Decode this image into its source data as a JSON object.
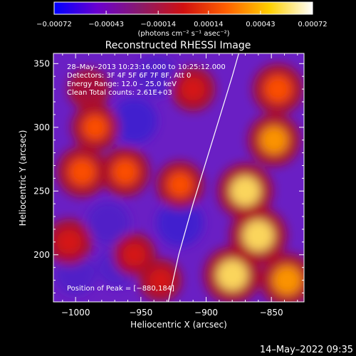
{
  "chart_data": {
    "type": "heatmap",
    "title": "Reconstructed RHESSI Image",
    "xlabel": "Heliocentric X (arcsec)",
    "ylabel": "Heliocentric Y (arcsec)",
    "xlim": [
      -1017,
      -825
    ],
    "ylim": [
      163,
      358
    ],
    "x_ticks": [
      -1000,
      -950,
      -900,
      -850
    ],
    "y_ticks": [
      200,
      250,
      300,
      350
    ],
    "x_tick_labels": [
      "−1000",
      "−950",
      "−900",
      "−850"
    ],
    "y_tick_labels": [
      "200",
      "250",
      "300",
      "350"
    ],
    "colorbar": {
      "range": [
        -0.00072,
        0.00072
      ],
      "ticks": [
        -0.00072,
        -0.00043,
        -0.00014,
        0.00014,
        0.00043,
        0.00072
      ],
      "tick_labels": [
        "−0.00072",
        "−0.00043",
        "−0.00014",
        "0.00014",
        "0.00043",
        "0.00072"
      ],
      "units_label": "(photons cm⁻² s⁻¹ asec⁻²)",
      "colors": [
        "#0000ff",
        "#6a00d0",
        "#8a1a6a",
        "#d01010",
        "#ff6000",
        "#ffd000",
        "#ffffff"
      ]
    },
    "annotations": {
      "time_range": "28–May–2013 10:23:16.000 to 10:25:12.000",
      "detectors": "Detectors: 3F 4F 5F 6F 7F 8F, Att 0",
      "energy": "Energy Range: 12.0 – 25.0 keV",
      "clean": "Clean     Total counts: 2.61E+03",
      "peak": "Position of Peak = [−880,184]"
    },
    "limb": [
      [
        -929,
        163
      ],
      [
        -921,
        200
      ],
      [
        -910,
        240
      ],
      [
        -898,
        280
      ],
      [
        -889,
        310
      ],
      [
        -880,
        340
      ],
      [
        -875,
        358
      ]
    ],
    "background": "#6a1fc4",
    "limb_color": "#ffffff",
    "hot_regions": [
      {
        "x": -870,
        "y": 250,
        "level": 0.95
      },
      {
        "x": -860,
        "y": 215,
        "level": 1.0
      },
      {
        "x": -880,
        "y": 184,
        "level": 1.0
      },
      {
        "x": -838,
        "y": 180,
        "level": 0.9
      },
      {
        "x": -848,
        "y": 290,
        "level": 0.85
      },
      {
        "x": -845,
        "y": 330,
        "level": 0.8
      },
      {
        "x": -995,
        "y": 265,
        "level": 0.8
      },
      {
        "x": -985,
        "y": 300,
        "level": 0.7
      },
      {
        "x": -962,
        "y": 265,
        "level": 0.75
      },
      {
        "x": -1005,
        "y": 210,
        "level": 0.65
      },
      {
        "x": -955,
        "y": 200,
        "level": 0.55
      },
      {
        "x": -920,
        "y": 255,
        "level": 0.7
      },
      {
        "x": -910,
        "y": 330,
        "level": 0.6
      },
      {
        "x": -990,
        "y": 330,
        "level": 0.5
      },
      {
        "x": -935,
        "y": 180,
        "level": 0.55
      }
    ],
    "cold_regions": [
      {
        "x": -955,
        "y": 305,
        "level": 0.75
      },
      {
        "x": -920,
        "y": 225,
        "level": 0.8
      },
      {
        "x": -975,
        "y": 225,
        "level": 0.65
      },
      {
        "x": -938,
        "y": 340,
        "level": 0.6
      },
      {
        "x": -1000,
        "y": 185,
        "level": 0.55
      },
      {
        "x": -968,
        "y": 190,
        "level": 0.5
      }
    ]
  },
  "footer": {
    "timestamp": "14–May–2022 09:35"
  }
}
